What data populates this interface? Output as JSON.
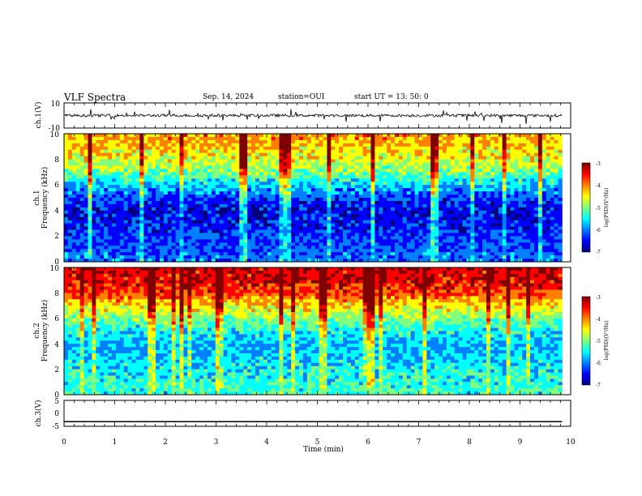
{
  "header": {
    "title": "VLF Spectra",
    "date": "Sep. 14, 2024",
    "station": "station=OUI",
    "start": "start  UT  =   13: 50: 0"
  },
  "chart_data": [
    {
      "type": "line",
      "title": "",
      "xlabel": "",
      "ylabel": "ch.1(V)",
      "ylim": [
        -10,
        10
      ],
      "y_ticks": [
        "10",
        "-10"
      ],
      "series": [
        {
          "values": [
            -2,
            0,
            -1,
            1,
            -3,
            0,
            -1,
            2,
            -1,
            0
          ]
        }
      ]
    },
    {
      "type": "heatmap",
      "channel_label": "ch.1",
      "ylabel": "Frequency (kHz)",
      "ylim": [
        0,
        10
      ],
      "y_ticks": [
        "0",
        "2",
        "4",
        "6",
        "8",
        "10"
      ],
      "colorbar": {
        "label": "log(PSD)(V²/Hz)",
        "range": [
          -7,
          -3
        ],
        "ticks": [
          "-3",
          "-4",
          "-5",
          "-6",
          "-7"
        ]
      },
      "frequency_profile_log_psd": [
        {
          "f": 0,
          "v": -6.0
        },
        {
          "f": 1,
          "v": -6.2
        },
        {
          "f": 2,
          "v": -6.3
        },
        {
          "f": 3,
          "v": -6.5
        },
        {
          "f": 4,
          "v": -6.6
        },
        {
          "f": 5,
          "v": -6.3
        },
        {
          "f": 6,
          "v": -5.7
        },
        {
          "f": 7,
          "v": -5.0
        },
        {
          "f": 8,
          "v": -4.6
        },
        {
          "f": 9,
          "v": -4.3
        },
        {
          "f": 10,
          "v": -4.1
        }
      ]
    },
    {
      "type": "heatmap",
      "channel_label": "ch.2",
      "ylabel": "Frequency (kHz)",
      "ylim": [
        0,
        10
      ],
      "y_ticks": [
        "0",
        "2",
        "4",
        "6",
        "8",
        "10"
      ],
      "colorbar": {
        "label": "log(PSD)(V²/Hz)",
        "range": [
          -7,
          -3
        ],
        "ticks": [
          "-3",
          "-4",
          "-5",
          "-6",
          "-7"
        ]
      },
      "frequency_profile_log_psd": [
        {
          "f": 0,
          "v": -5.3
        },
        {
          "f": 1,
          "v": -5.4
        },
        {
          "f": 2,
          "v": -5.5
        },
        {
          "f": 3,
          "v": -5.7
        },
        {
          "f": 4,
          "v": -5.8
        },
        {
          "f": 5,
          "v": -5.5
        },
        {
          "f": 6,
          "v": -5.0
        },
        {
          "f": 7,
          "v": -4.4
        },
        {
          "f": 8,
          "v": -3.7
        },
        {
          "f": 9,
          "v": -3.4
        },
        {
          "f": 10,
          "v": -3.3
        }
      ]
    },
    {
      "type": "line",
      "ylabel": "ch.3(V)",
      "ylim": [
        -5,
        5
      ],
      "y_ticks": [
        "5",
        "0",
        "-5"
      ],
      "series": [
        {
          "x": [
            0,
            9.83
          ],
          "values": [
            -3.2,
            -3.2
          ]
        }
      ]
    }
  ],
  "x_axis": {
    "label": "Time (min)",
    "range": [
      0,
      10
    ],
    "ticks": [
      "0",
      "1",
      "2",
      "3",
      "4",
      "5",
      "6",
      "7",
      "8",
      "9",
      "10"
    ],
    "data_end": 9.83
  },
  "colors": {
    "jet": [
      "#00007f",
      "#0000ff",
      "#007fff",
      "#00ffff",
      "#7fff7f",
      "#ffff00",
      "#ff7f00",
      "#ff0000",
      "#7f0000"
    ]
  }
}
